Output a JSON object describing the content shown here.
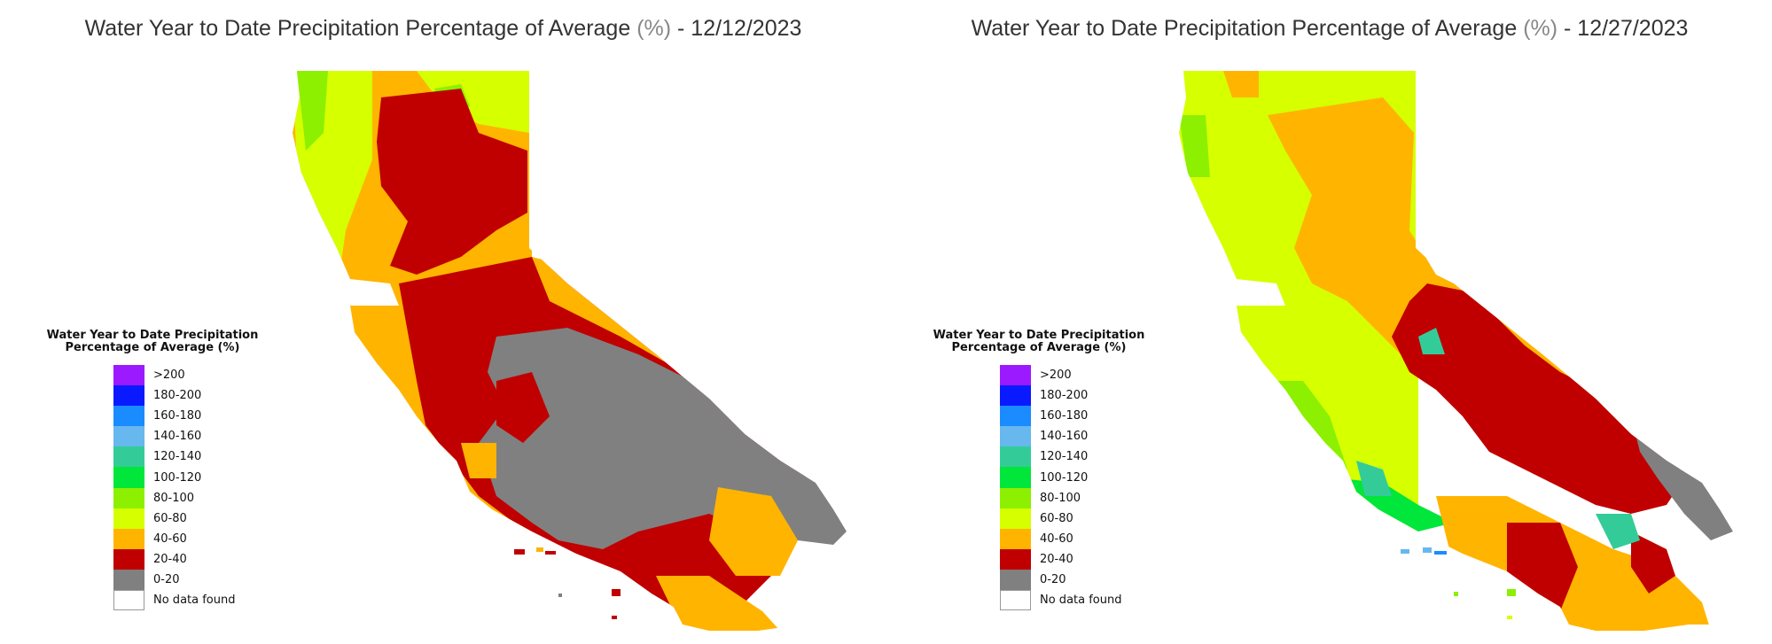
{
  "maps": [
    {
      "title_pre": "Water Year to Date Precipitation Percentage of Average ",
      "title_unit": "(%)",
      "title_post": " - 12/12/2023",
      "legend_title_line1": "Water Year to Date Precipitation",
      "legend_title_line2": "Percentage of Average (%)",
      "dominant_fill": "#c00000",
      "central_fill": "#808080"
    },
    {
      "title_pre": "Water Year to Date Precipitation Percentage of Average ",
      "title_unit": "(%)",
      "title_post": " - 12/27/2023",
      "legend_title_line1": "Water Year to Date Precipitation",
      "legend_title_line2": "Percentage of Average (%)",
      "dominant_fill": "#ffb400",
      "central_fill": "#c00000"
    }
  ],
  "legend_items": [
    {
      "label": ">200",
      "color": "#9b1aff"
    },
    {
      "label": "180-200",
      "color": "#0a1aff"
    },
    {
      "label": "160-180",
      "color": "#1a8cff"
    },
    {
      "label": "140-160",
      "color": "#66b8ee"
    },
    {
      "label": "120-140",
      "color": "#33cc99"
    },
    {
      "label": "100-120",
      "color": "#00e63a"
    },
    {
      "label": "80-100",
      "color": "#8cf000"
    },
    {
      "label": "60-80",
      "color": "#d6ff00"
    },
    {
      "label": "40-60",
      "color": "#ffb400"
    },
    {
      "label": "20-40",
      "color": "#c00000"
    },
    {
      "label": "0-20",
      "color": "#808080"
    },
    {
      "label": "No data found",
      "color": "#ffffff"
    }
  ]
}
